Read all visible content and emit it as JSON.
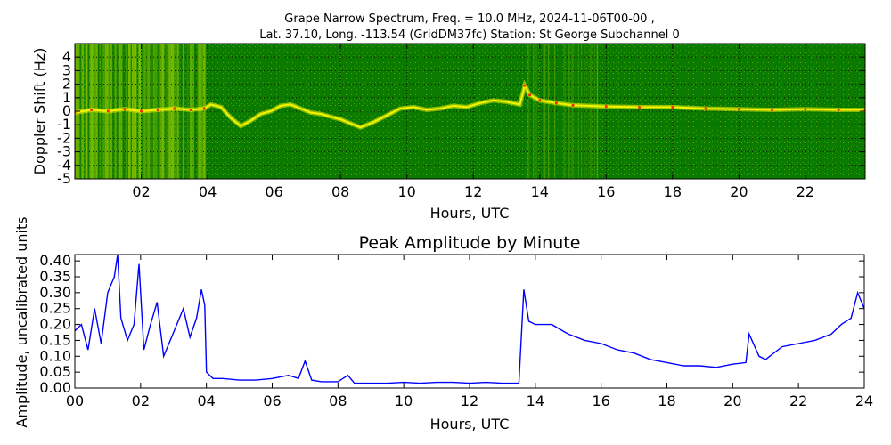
{
  "chart_data": [
    {
      "type": "heatmap",
      "title_line1": "Grape Narrow Spectrum, Freq. = 10.0 MHz, 2024-11-06T00-00 ,",
      "title_line2": "Lat.  37.10, Long. -113.54 (GridDM37fc) Station: St George Subchannel 0",
      "xlabel": "Hours, UTC",
      "ylabel": "Doppler Shift (Hz)",
      "xlim": [
        0,
        23.8
      ],
      "ylim": [
        -5,
        5
      ],
      "x_ticks": [
        2,
        4,
        6,
        8,
        10,
        12,
        14,
        16,
        18,
        20,
        22
      ],
      "x_tick_labels": [
        "02",
        "04",
        "06",
        "08",
        "10",
        "12",
        "14",
        "16",
        "18",
        "20",
        "22"
      ],
      "y_ticks": [
        4,
        3,
        2,
        1,
        0,
        -1,
        -2,
        -3,
        -4,
        -5
      ],
      "y_tick_labels": [
        "4",
        "3",
        "2",
        "1",
        "0",
        "-1",
        "-2",
        "-3",
        "-4",
        "-5"
      ],
      "grid": true,
      "colors": {
        "background": "#0a7a00",
        "noise": "#7fbf00",
        "signal": "#f4f400",
        "peak": "#ff2000"
      },
      "doppler_trace": {
        "x": [
          0,
          0.5,
          1,
          1.5,
          2,
          2.5,
          3,
          3.5,
          3.9,
          4.1,
          4.4,
          4.7,
          5.0,
          5.3,
          5.6,
          5.9,
          6.2,
          6.5,
          6.8,
          7.1,
          7.4,
          7.7,
          8.0,
          8.3,
          8.6,
          9.0,
          9.4,
          9.8,
          10.2,
          10.6,
          11.0,
          11.4,
          11.8,
          12.2,
          12.6,
          13.0,
          13.4,
          13.55,
          13.7,
          14.0,
          14.5,
          15.0,
          16,
          17,
          18,
          19,
          20,
          21,
          22,
          23,
          23.8
        ],
        "y": [
          -0.1,
          0.1,
          0.0,
          0.15,
          0.0,
          0.1,
          0.2,
          0.1,
          0.2,
          0.5,
          0.3,
          -0.5,
          -1.1,
          -0.7,
          -0.2,
          0.0,
          0.4,
          0.5,
          0.2,
          -0.1,
          -0.2,
          -0.4,
          -0.6,
          -0.9,
          -1.2,
          -0.8,
          -0.3,
          0.2,
          0.3,
          0.1,
          0.2,
          0.4,
          0.3,
          0.6,
          0.8,
          0.7,
          0.5,
          1.9,
          1.2,
          0.8,
          0.6,
          0.45,
          0.35,
          0.3,
          0.3,
          0.2,
          0.15,
          0.1,
          0.15,
          0.1,
          0.1
        ]
      }
    },
    {
      "type": "line",
      "title": "Peak Amplitude by Minute",
      "xlabel": "Hours, UTC",
      "ylabel": "Amplitude, uncalibrated units",
      "xlim": [
        0,
        24
      ],
      "ylim": [
        0,
        0.42
      ],
      "x_ticks": [
        0,
        2,
        4,
        6,
        8,
        10,
        12,
        14,
        16,
        18,
        20,
        22,
        24
      ],
      "x_tick_labels": [
        "00",
        "02",
        "04",
        "06",
        "08",
        "10",
        "12",
        "14",
        "16",
        "18",
        "20",
        "22",
        "24"
      ],
      "y_ticks": [
        0,
        0.05,
        0.1,
        0.15,
        0.2,
        0.25,
        0.3,
        0.35,
        0.4
      ],
      "y_tick_labels": [
        "0.00",
        "0.05",
        "0.10",
        "0.15",
        "0.20",
        "0.25",
        "0.30",
        "0.35",
        "0.40"
      ],
      "color": "#0000ff",
      "series": [
        {
          "x": [
            0,
            0.2,
            0.4,
            0.6,
            0.8,
            1.0,
            1.2,
            1.3,
            1.4,
            1.6,
            1.8,
            1.95,
            2.1,
            2.3,
            2.5,
            2.7,
            2.9,
            3.1,
            3.3,
            3.5,
            3.7,
            3.85,
            3.95,
            4.0,
            4.2,
            4.5,
            5.0,
            5.5,
            6.0,
            6.5,
            6.8,
            7.0,
            7.2,
            7.5,
            8.0,
            8.3,
            8.5,
            9.0,
            9.5,
            10.0,
            10.5,
            11.0,
            11.5,
            12.0,
            12.5,
            13.0,
            13.5,
            13.65,
            13.8,
            14.0,
            14.5,
            15.0,
            15.5,
            16.0,
            16.5,
            17.0,
            17.5,
            18.0,
            18.5,
            19.0,
            19.5,
            20.0,
            20.4,
            20.5,
            20.8,
            21.0,
            21.5,
            22.0,
            22.5,
            23.0,
            23.3,
            23.6,
            23.8,
            24.0
          ],
          "y": [
            0.18,
            0.2,
            0.12,
            0.25,
            0.14,
            0.3,
            0.35,
            0.42,
            0.22,
            0.15,
            0.2,
            0.39,
            0.12,
            0.2,
            0.27,
            0.1,
            0.15,
            0.2,
            0.25,
            0.16,
            0.22,
            0.31,
            0.26,
            0.05,
            0.03,
            0.03,
            0.025,
            0.025,
            0.03,
            0.04,
            0.03,
            0.085,
            0.025,
            0.02,
            0.02,
            0.04,
            0.015,
            0.015,
            0.015,
            0.018,
            0.015,
            0.018,
            0.018,
            0.015,
            0.018,
            0.015,
            0.015,
            0.31,
            0.21,
            0.2,
            0.2,
            0.17,
            0.15,
            0.14,
            0.12,
            0.11,
            0.09,
            0.08,
            0.07,
            0.07,
            0.065,
            0.075,
            0.08,
            0.17,
            0.1,
            0.09,
            0.13,
            0.14,
            0.15,
            0.17,
            0.2,
            0.22,
            0.3,
            0.25
          ]
        }
      ]
    }
  ]
}
